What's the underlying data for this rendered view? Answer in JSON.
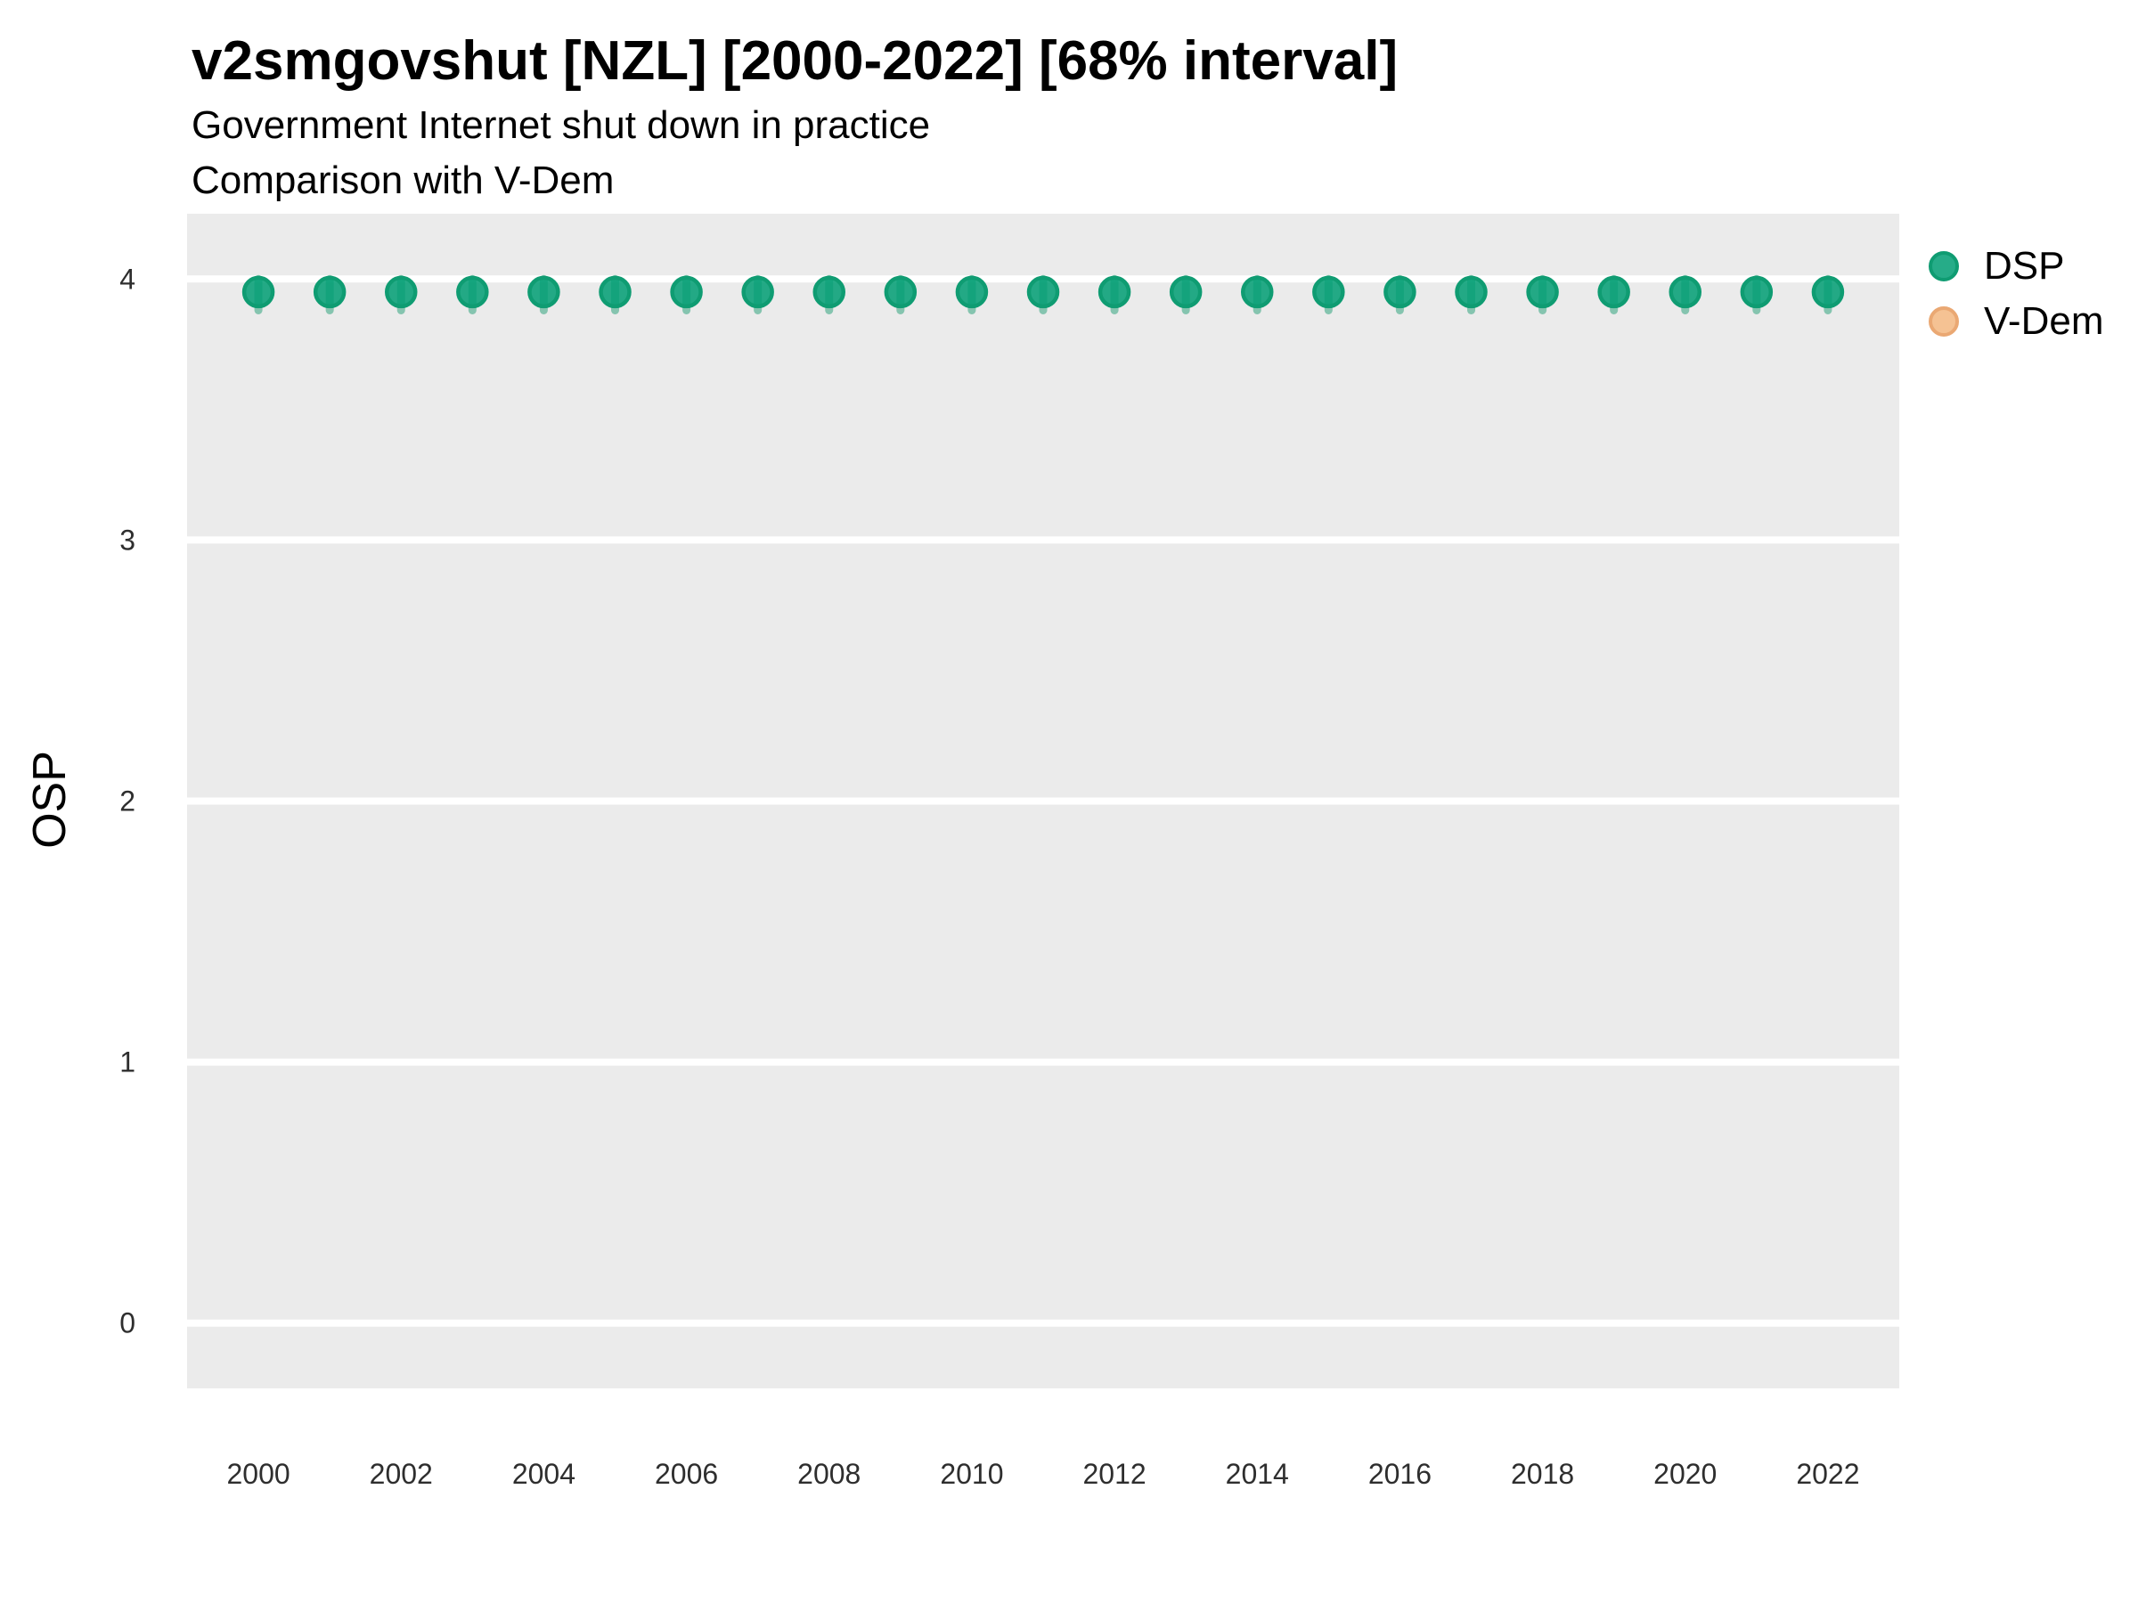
{
  "header": {
    "title": "v2smgovshut [NZL] [2000-2022] [68% interval]",
    "subtitle1": "Government Internet shut down in practice",
    "subtitle2": "Comparison with V-Dem"
  },
  "axes": {
    "y_title": "OSP",
    "y_ticks": [
      4,
      3,
      2,
      1,
      0
    ],
    "x_ticks": [
      2000,
      2002,
      2004,
      2006,
      2008,
      2010,
      2012,
      2014,
      2016,
      2018,
      2020,
      2022
    ]
  },
  "legend": {
    "items": [
      {
        "label": "DSP",
        "fill": "rgba(0,158,115,0.85)",
        "stroke": "#0f9c72"
      },
      {
        "label": "V-Dem",
        "fill": "#f5c293",
        "stroke": "#eaa873"
      }
    ]
  },
  "colors": {
    "panel_background": "#ebebeb",
    "gridline": "#ffffff",
    "tick_text": "#2e2e2e",
    "dsp_fill": "rgba(0,158,115,0.85)",
    "dsp_stroke": "#0f9c72",
    "dsp_interval": "rgba(31,158,115,0.5)"
  },
  "chart_data": {
    "type": "scatter",
    "title": "v2smgovshut [NZL] [2000-2022] [68% interval]",
    "subtitle": "Government Internet shut down in practice — Comparison with V-Dem",
    "xlabel": "",
    "ylabel": "OSP",
    "xlim": [
      1999,
      2023
    ],
    "ylim": [
      -0.25,
      4.25
    ],
    "grid": "horizontal-major-only",
    "legend_position": "right",
    "interval": "68%",
    "x": [
      2000,
      2001,
      2002,
      2003,
      2004,
      2005,
      2006,
      2007,
      2008,
      2009,
      2010,
      2011,
      2012,
      2013,
      2014,
      2015,
      2016,
      2017,
      2018,
      2019,
      2020,
      2021,
      2022
    ],
    "series": [
      {
        "name": "DSP",
        "values": [
          3.95,
          3.95,
          3.95,
          3.95,
          3.95,
          3.95,
          3.95,
          3.95,
          3.95,
          3.95,
          3.95,
          3.95,
          3.95,
          3.95,
          3.95,
          3.95,
          3.95,
          3.95,
          3.95,
          3.95,
          3.95,
          3.95,
          3.95
        ],
        "interval_low": [
          3.88,
          3.88,
          3.88,
          3.88,
          3.88,
          3.88,
          3.88,
          3.88,
          3.88,
          3.88,
          3.88,
          3.88,
          3.88,
          3.88,
          3.88,
          3.88,
          3.88,
          3.88,
          3.88,
          3.88,
          3.88,
          3.88,
          3.88
        ],
        "interval_high": [
          4.0,
          4.0,
          4.0,
          4.0,
          4.0,
          4.0,
          4.0,
          4.0,
          4.0,
          4.0,
          4.0,
          4.0,
          4.0,
          4.0,
          4.0,
          4.0,
          4.0,
          4.0,
          4.0,
          4.0,
          4.0,
          4.0,
          4.0
        ]
      },
      {
        "name": "V-Dem",
        "values": []
      }
    ]
  }
}
